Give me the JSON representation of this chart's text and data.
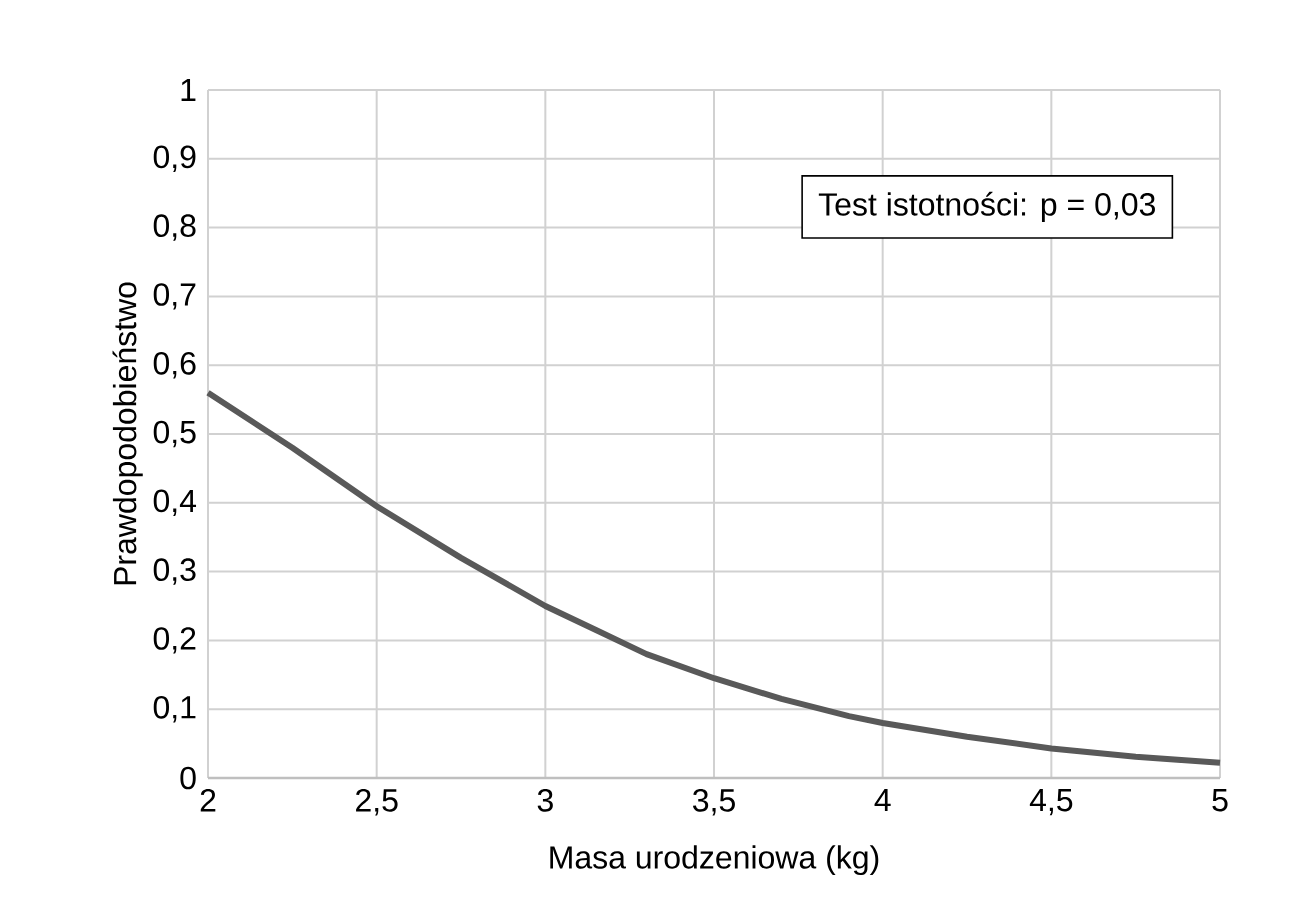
{
  "chart_data": {
    "type": "line",
    "xlabel": "Masa urodzeniowa (kg)",
    "ylabel": "Prawdopodobieństwo",
    "annotations": [
      "Test istotności: p = 0,03"
    ],
    "x": [
      2,
      2.25,
      2.5,
      2.75,
      3,
      3.15,
      3.3,
      3.5,
      3.7,
      3.9,
      4,
      4.25,
      4.5,
      4.75,
      5
    ],
    "series": [
      {
        "color": "#595959",
        "values": [
          0.56,
          0.48,
          0.395,
          0.32,
          0.25,
          0.215,
          0.18,
          0.145,
          0.115,
          0.09,
          0.08,
          0.06,
          0.043,
          0.031,
          0.022
        ]
      }
    ],
    "xlim": [
      2,
      5
    ],
    "ylim": [
      0,
      1
    ],
    "xticks": [
      2,
      {
        "value": 2.5,
        "label": "2,5"
      },
      3,
      {
        "value": 3.5,
        "label": "3,5"
      },
      4,
      {
        "value": 4.5,
        "label": "4,5"
      },
      5
    ],
    "yticks": [
      0,
      {
        "value": 0.1,
        "label": "0,1"
      },
      {
        "value": 0.2,
        "label": "0,2"
      },
      {
        "value": 0.3,
        "label": "0,3"
      },
      {
        "value": 0.4,
        "label": "0,4"
      },
      {
        "value": 0.5,
        "label": "0,5"
      },
      {
        "value": 0.6,
        "label": "0,6"
      },
      {
        "value": 0.7,
        "label": "0,7"
      },
      {
        "value": 0.8,
        "label": "0,8"
      },
      {
        "value": 0.9,
        "label": "0,9"
      },
      1
    ],
    "grid": true,
    "legend": false,
    "marker": "none",
    "line_style": "solid"
  }
}
